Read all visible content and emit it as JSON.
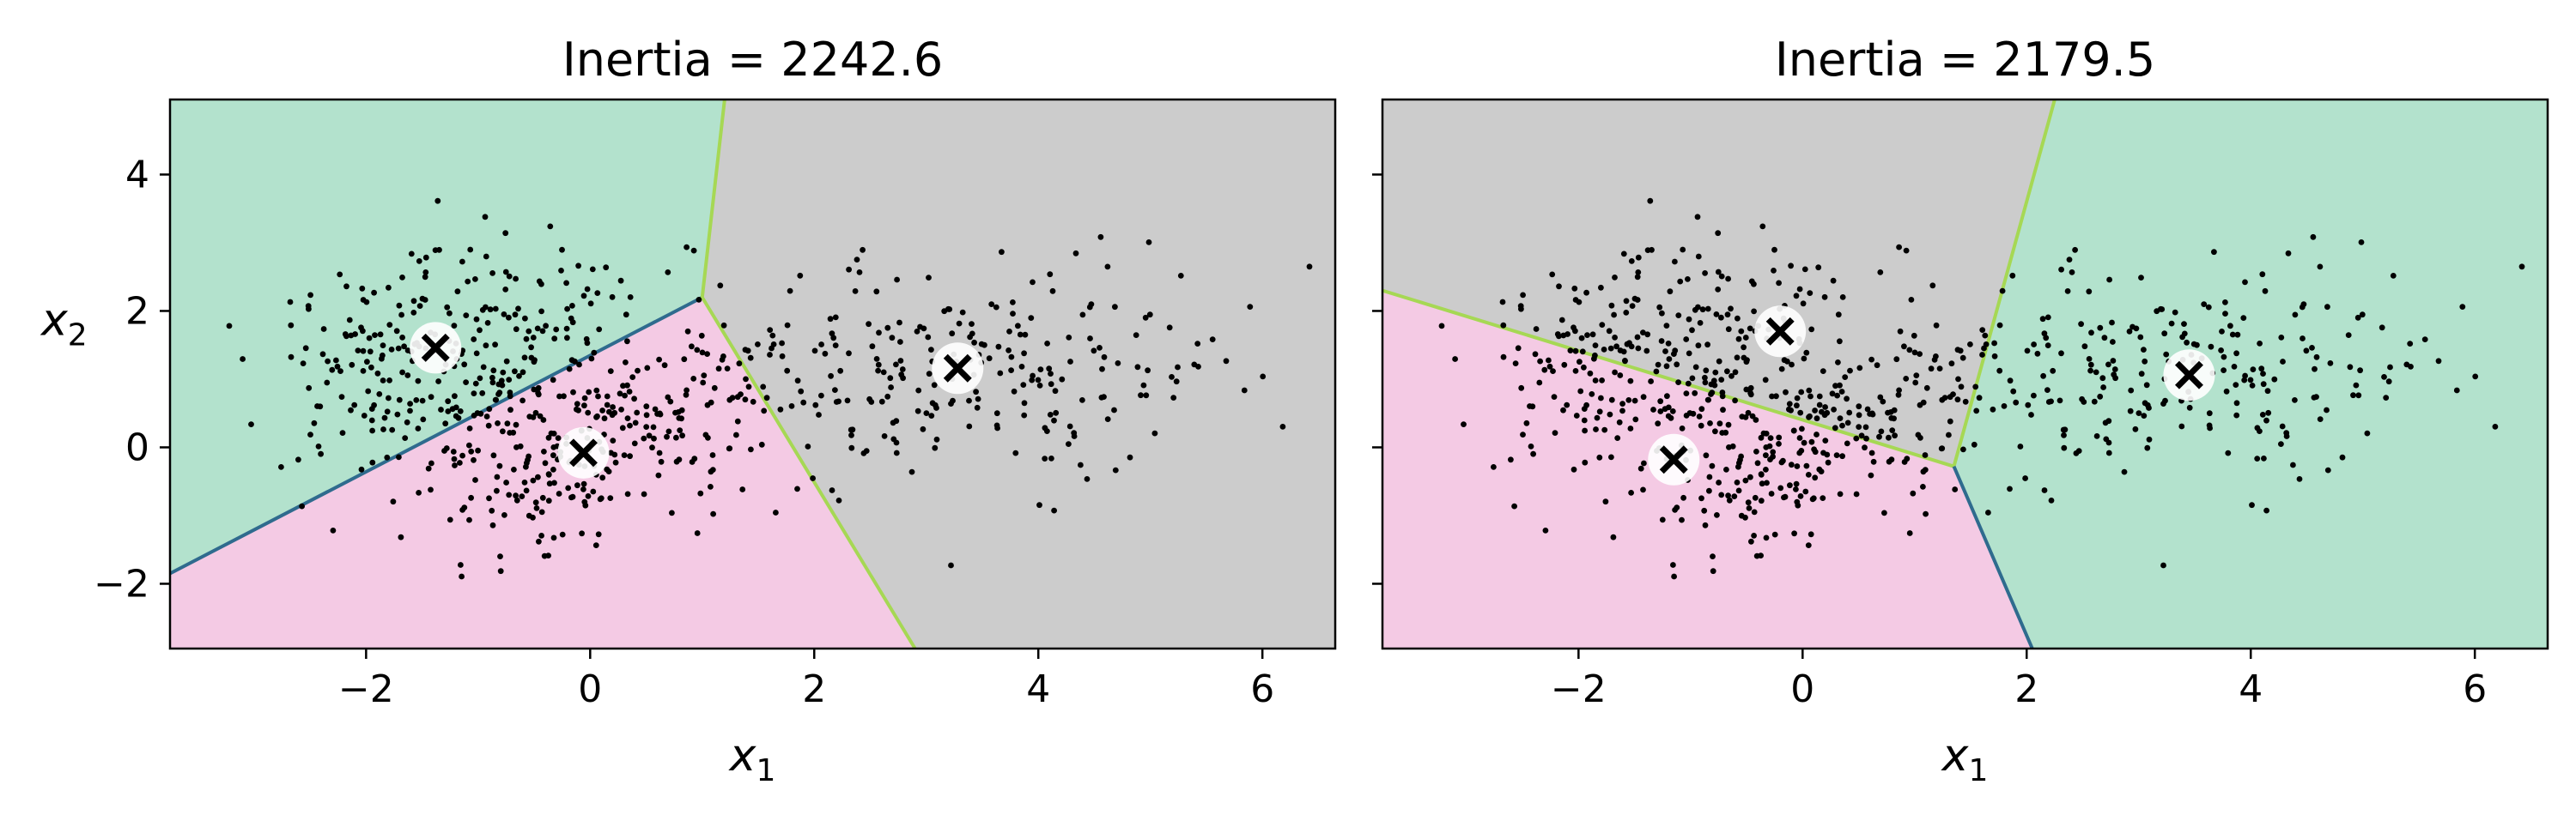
{
  "chart_data": [
    {
      "type": "scatter",
      "title": "Inertia = 2242.6",
      "xlabel": "x",
      "xlabel_sub": "1",
      "ylabel": "x",
      "ylabel_sub": "2",
      "xlim": [
        -3.75,
        6.65
      ],
      "ylim": [
        -2.95,
        5.1
      ],
      "xticks": [
        -2,
        0,
        2,
        4,
        6
      ],
      "xtick_labels": [
        "−2",
        "0",
        "2",
        "4",
        "6"
      ],
      "yticks": [
        -2,
        0,
        2,
        4
      ],
      "ytick_labels": [
        "−2",
        "0",
        "2",
        "4"
      ],
      "grid": false,
      "centroids": [
        {
          "x": -1.38,
          "y": 1.46
        },
        {
          "x": -0.06,
          "y": -0.08
        },
        {
          "x": 3.28,
          "y": 1.16
        }
      ],
      "regions": [
        {
          "color": "#b3e2cd",
          "polygon": [
            [
              -3.75,
              5.1
            ],
            [
              1.2,
              5.1
            ],
            [
              1.0,
              2.2
            ],
            [
              -3.75,
              -1.85
            ]
          ]
        },
        {
          "color": "#f4cae4",
          "polygon": [
            [
              -3.75,
              -1.85
            ],
            [
              1.0,
              2.2
            ],
            [
              2.9,
              -2.95
            ],
            [
              -3.75,
              -2.95
            ]
          ]
        },
        {
          "color": "#cccccc",
          "polygon": [
            [
              1.2,
              5.1
            ],
            [
              6.65,
              5.1
            ],
            [
              6.65,
              -2.95
            ],
            [
              2.9,
              -2.95
            ],
            [
              1.0,
              2.2
            ]
          ]
        }
      ],
      "boundaries": [
        {
          "color": "#2f6b8e",
          "points": [
            [
              -3.75,
              -1.85
            ],
            [
              1.0,
              2.2
            ]
          ]
        },
        {
          "color": "#a6d854",
          "points": [
            [
              1.2,
              5.1
            ],
            [
              1.0,
              2.2
            ],
            [
              2.9,
              -2.95
            ]
          ]
        }
      ],
      "clusters": [
        {
          "center": [
            -1.3,
            1.45
          ],
          "sd": [
            0.95,
            0.65
          ],
          "rot": 0.55,
          "n": 260
        },
        {
          "center": [
            -0.1,
            -0.05
          ],
          "sd": [
            0.95,
            0.55
          ],
          "rot": 0.75,
          "n": 260
        },
        {
          "center": [
            3.2,
            1.1
          ],
          "sd": [
            1.25,
            0.9
          ],
          "rot": 0.05,
          "n": 250
        }
      ],
      "seed": 42
    },
    {
      "type": "scatter",
      "title": "Inertia = 2179.5",
      "xlabel": "x",
      "xlabel_sub": "1",
      "ylabel": "",
      "ylabel_sub": "",
      "xlim": [
        -3.75,
        6.65
      ],
      "ylim": [
        -2.95,
        5.1
      ],
      "xticks": [
        -2,
        0,
        2,
        4,
        6
      ],
      "xtick_labels": [
        "−2",
        "0",
        "2",
        "4",
        "6"
      ],
      "yticks": [
        -2,
        0,
        2,
        4
      ],
      "ytick_labels": [
        "",
        "",
        "",
        ""
      ],
      "grid": false,
      "centroids": [
        {
          "x": -1.15,
          "y": -0.18
        },
        {
          "x": -0.2,
          "y": 1.7
        },
        {
          "x": 3.45,
          "y": 1.06
        }
      ],
      "regions": [
        {
          "color": "#cccccc",
          "polygon": [
            [
              -3.75,
              5.1
            ],
            [
              2.25,
              5.1
            ],
            [
              1.35,
              -0.28
            ],
            [
              -3.75,
              2.3
            ]
          ]
        },
        {
          "color": "#f4cae4",
          "polygon": [
            [
              -3.75,
              2.3
            ],
            [
              1.35,
              -0.28
            ],
            [
              2.05,
              -2.95
            ],
            [
              -3.75,
              -2.95
            ]
          ]
        },
        {
          "color": "#b3e2cd",
          "polygon": [
            [
              2.25,
              5.1
            ],
            [
              6.65,
              5.1
            ],
            [
              6.65,
              -2.95
            ],
            [
              2.05,
              -2.95
            ],
            [
              1.35,
              -0.28
            ]
          ]
        }
      ],
      "boundaries": [
        {
          "color": "#a6d854",
          "points": [
            [
              -3.75,
              2.3
            ],
            [
              1.35,
              -0.28
            ],
            [
              2.25,
              5.1
            ]
          ]
        },
        {
          "color": "#2f6b8e",
          "points": [
            [
              1.35,
              -0.28
            ],
            [
              2.05,
              -2.95
            ]
          ]
        }
      ],
      "clusters": [
        {
          "center": [
            -1.3,
            1.45
          ],
          "sd": [
            0.95,
            0.65
          ],
          "rot": 0.55,
          "n": 260
        },
        {
          "center": [
            -0.1,
            -0.05
          ],
          "sd": [
            0.95,
            0.55
          ],
          "rot": 0.75,
          "n": 260
        },
        {
          "center": [
            3.2,
            1.1
          ],
          "sd": [
            1.25,
            0.9
          ],
          "rot": 0.05,
          "n": 250
        }
      ],
      "seed": 42
    }
  ]
}
